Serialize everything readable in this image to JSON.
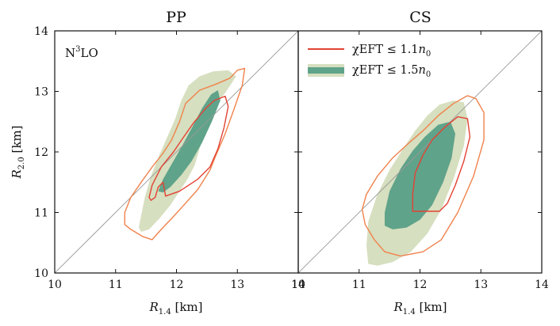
{
  "chart_data": [
    {
      "type": "contour",
      "title": "PP",
      "annotation": {
        "text": "N",
        "sup": "3",
        "text2": "LO"
      },
      "xlabel": {
        "main": "R",
        "sub": "1.4",
        "unit": " [km]"
      },
      "ylabel": {
        "main": "R",
        "sub": "2.0",
        "unit": " [km]"
      },
      "xlim": [
        10,
        14
      ],
      "ylim": [
        10,
        14
      ],
      "xticks": [
        "10",
        "11",
        "12",
        "13",
        "14"
      ],
      "yticks": [
        "10",
        "11",
        "12",
        "13",
        "14"
      ],
      "diagonal": [
        [
          10,
          10
        ],
        [
          14,
          14
        ]
      ],
      "series": [
        {
          "name": "χEFT ≤ 1.5n0 (outer, light)",
          "kind": "fill",
          "color": "#d6dfbf",
          "points": [
            [
              11.38,
              10.75
            ],
            [
              11.42,
              10.95
            ],
            [
              11.48,
              11.25
            ],
            [
              11.58,
              11.6
            ],
            [
              11.72,
              11.95
            ],
            [
              11.85,
              12.25
            ],
            [
              11.98,
              12.55
            ],
            [
              12.08,
              12.85
            ],
            [
              12.2,
              13.1
            ],
            [
              12.38,
              13.25
            ],
            [
              12.6,
              13.33
            ],
            [
              12.85,
              13.35
            ],
            [
              12.98,
              13.25
            ],
            [
              12.85,
              13.05
            ],
            [
              12.62,
              12.72
            ],
            [
              12.47,
              12.35
            ],
            [
              12.37,
              12.02
            ],
            [
              12.3,
              11.78
            ],
            [
              12.18,
              11.55
            ],
            [
              12.05,
              11.35
            ],
            [
              11.9,
              11.12
            ],
            [
              11.72,
              10.9
            ],
            [
              11.55,
              10.72
            ],
            [
              11.42,
              10.68
            ]
          ]
        },
        {
          "name": "χEFT ≤ 1.5n0 (inner, dark)",
          "kind": "fill",
          "color": "#5fa38a",
          "points": [
            [
              11.7,
              11.35
            ],
            [
              11.78,
              11.55
            ],
            [
              11.95,
              11.85
            ],
            [
              12.12,
              12.15
            ],
            [
              12.28,
              12.45
            ],
            [
              12.42,
              12.72
            ],
            [
              12.57,
              12.95
            ],
            [
              12.68,
              13.02
            ],
            [
              12.72,
              12.85
            ],
            [
              12.58,
              12.5
            ],
            [
              12.42,
              12.15
            ],
            [
              12.25,
              11.85
            ],
            [
              12.08,
              11.62
            ],
            [
              11.9,
              11.42
            ],
            [
              11.78,
              11.33
            ]
          ]
        },
        {
          "name": "χEFT ≤ 1.1n0 (outer, orange)",
          "kind": "line",
          "color": "#f0824c",
          "points": [
            [
              11.15,
              10.8
            ],
            [
              11.15,
              11.0
            ],
            [
              11.25,
              11.25
            ],
            [
              11.42,
              11.5
            ],
            [
              11.6,
              11.75
            ],
            [
              11.78,
              11.98
            ],
            [
              11.92,
              12.2
            ],
            [
              12.05,
              12.5
            ],
            [
              12.15,
              12.8
            ],
            [
              12.38,
              13.02
            ],
            [
              12.65,
              13.12
            ],
            [
              12.88,
              13.22
            ],
            [
              13.0,
              13.35
            ],
            [
              13.12,
              13.38
            ],
            [
              13.08,
              13.1
            ],
            [
              12.95,
              12.72
            ],
            [
              12.8,
              12.3
            ],
            [
              12.65,
              11.95
            ],
            [
              12.55,
              11.7
            ],
            [
              12.35,
              11.38
            ],
            [
              12.12,
              11.12
            ],
            [
              11.92,
              10.9
            ],
            [
              11.75,
              10.72
            ],
            [
              11.6,
              10.55
            ],
            [
              11.45,
              10.6
            ],
            [
              11.25,
              10.72
            ],
            [
              11.15,
              10.8
            ]
          ]
        },
        {
          "name": "χEFT ≤ 1.1n0 (inner, red)",
          "kind": "line",
          "color": "#e34234",
          "points": [
            [
              11.55,
              11.25
            ],
            [
              11.6,
              11.45
            ],
            [
              11.75,
              11.75
            ],
            [
              11.95,
              12.0
            ],
            [
              12.12,
              12.25
            ],
            [
              12.28,
              12.48
            ],
            [
              12.48,
              12.72
            ],
            [
              12.62,
              12.85
            ],
            [
              12.8,
              12.92
            ],
            [
              12.85,
              12.75
            ],
            [
              12.78,
              12.4
            ],
            [
              12.68,
              12.05
            ],
            [
              12.55,
              11.75
            ],
            [
              12.35,
              11.55
            ],
            [
              12.05,
              11.35
            ],
            [
              11.82,
              11.27
            ],
            [
              11.78,
              11.5
            ],
            [
              11.7,
              11.42
            ],
            [
              11.65,
              11.25
            ],
            [
              11.58,
              11.2
            ],
            [
              11.55,
              11.25
            ]
          ]
        }
      ]
    },
    {
      "type": "contour",
      "title": "CS",
      "xlabel": {
        "main": "R",
        "sub": "1.4",
        "unit": " [km]"
      },
      "xlim": [
        10,
        14
      ],
      "ylim": [
        10,
        14
      ],
      "xticks": [
        "10",
        "11",
        "12",
        "13",
        "14"
      ],
      "diagonal": [
        [
          10,
          10
        ],
        [
          14,
          14
        ]
      ],
      "legend": [
        {
          "label_main": "χEFT ≤ 1.1",
          "label_var": "n",
          "label_sub": "0",
          "kind": "line",
          "color": "#e34234",
          "color2": "#f0824c"
        },
        {
          "label_main": "χEFT ≤ 1.5",
          "label_var": "n",
          "label_sub": "0",
          "kind": "patch",
          "color": "#d6dfbf",
          "color2": "#5fa38a"
        }
      ],
      "series": [
        {
          "name": "χEFT ≤ 1.5n0 (outer, light)",
          "kind": "fill",
          "color": "#d6dfbf",
          "points": [
            [
              11.15,
              10.15
            ],
            [
              11.12,
              10.45
            ],
            [
              11.15,
              10.85
            ],
            [
              11.3,
              11.3
            ],
            [
              11.5,
              11.7
            ],
            [
              11.72,
              12.05
            ],
            [
              11.92,
              12.35
            ],
            [
              12.12,
              12.6
            ],
            [
              12.32,
              12.78
            ],
            [
              12.55,
              12.85
            ],
            [
              12.72,
              12.82
            ],
            [
              12.78,
              12.55
            ],
            [
              12.72,
              12.1
            ],
            [
              12.55,
              11.55
            ],
            [
              12.35,
              11.05
            ],
            [
              12.12,
              10.65
            ],
            [
              11.85,
              10.35
            ],
            [
              11.55,
              10.18
            ],
            [
              11.3,
              10.12
            ]
          ]
        },
        {
          "name": "χEFT ≤ 1.5n0 (inner, dark)",
          "kind": "fill",
          "color": "#5fa38a",
          "points": [
            [
              11.42,
              10.78
            ],
            [
              11.42,
              11.0
            ],
            [
              11.5,
              11.35
            ],
            [
              11.68,
              11.72
            ],
            [
              11.88,
              12.02
            ],
            [
              12.08,
              12.25
            ],
            [
              12.3,
              12.45
            ],
            [
              12.5,
              12.5
            ],
            [
              12.58,
              12.3
            ],
            [
              12.52,
              11.9
            ],
            [
              12.38,
              11.5
            ],
            [
              12.2,
              11.12
            ],
            [
              12.0,
              10.88
            ],
            [
              11.78,
              10.75
            ],
            [
              11.55,
              10.72
            ]
          ]
        },
        {
          "name": "χEFT ≤ 1.1n0 (outer, orange)",
          "kind": "line",
          "color": "#f0824c",
          "points": [
            [
              11.05,
              11.05
            ],
            [
              11.12,
              11.3
            ],
            [
              11.3,
              11.6
            ],
            [
              11.55,
              11.9
            ],
            [
              11.82,
              12.15
            ],
            [
              12.05,
              12.35
            ],
            [
              12.3,
              12.6
            ],
            [
              12.55,
              12.8
            ],
            [
              12.78,
              12.93
            ],
            [
              12.92,
              12.88
            ],
            [
              13.05,
              12.65
            ],
            [
              13.05,
              12.2
            ],
            [
              12.88,
              11.6
            ],
            [
              12.62,
              11.0
            ],
            [
              12.35,
              10.55
            ],
            [
              12.05,
              10.35
            ],
            [
              11.68,
              10.28
            ],
            [
              11.42,
              10.35
            ],
            [
              11.25,
              10.55
            ],
            [
              11.1,
              10.8
            ],
            [
              11.05,
              11.05
            ]
          ]
        },
        {
          "name": "χEFT ≤ 1.1n0 (inner, red)",
          "kind": "line",
          "color": "#e34234",
          "points": [
            [
              11.88,
              11.02
            ],
            [
              11.88,
              11.3
            ],
            [
              11.92,
              11.65
            ],
            [
              12.05,
              11.95
            ],
            [
              12.2,
              12.2
            ],
            [
              12.42,
              12.42
            ],
            [
              12.62,
              12.58
            ],
            [
              12.78,
              12.55
            ],
            [
              12.82,
              12.25
            ],
            [
              12.72,
              11.85
            ],
            [
              12.58,
              11.45
            ],
            [
              12.45,
              11.15
            ],
            [
              12.32,
              11.02
            ],
            [
              12.12,
              11.02
            ],
            [
              11.95,
              11.02
            ],
            [
              11.88,
              11.02
            ]
          ]
        }
      ]
    }
  ]
}
